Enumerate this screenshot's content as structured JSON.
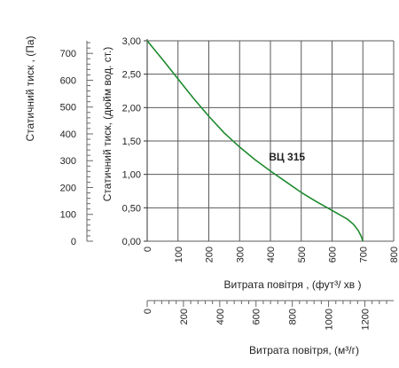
{
  "chart_data": {
    "type": "line",
    "series": [
      {
        "name": "ВЦ 315",
        "color": "#1e8a2e",
        "x": [
          0,
          50,
          100,
          150,
          200,
          250,
          300,
          350,
          400,
          450,
          500,
          550,
          600,
          650,
          670,
          685,
          695,
          700
        ],
        "y": [
          3.0,
          2.72,
          2.43,
          2.14,
          1.87,
          1.62,
          1.41,
          1.22,
          1.05,
          0.89,
          0.73,
          0.59,
          0.46,
          0.33,
          0.25,
          0.16,
          0.07,
          0.0
        ]
      }
    ],
    "x_axis_main": {
      "label": "Витрата повітря , (фут³/  хв )",
      "min": 0,
      "max": 800,
      "ticks": [
        "0",
        "100",
        "200",
        "300",
        "400",
        "500",
        "600",
        "700",
        "800"
      ],
      "grid": true
    },
    "y_axis_main": {
      "label": "Статичний тиск, (дюйм вод. ст.)",
      "min": 0,
      "max": 3,
      "ticks": [
        "0,00",
        "0,50",
        "1,00",
        "1,50",
        "2,00",
        "2,50",
        "3,00"
      ],
      "grid": true
    },
    "y_axis_secondary": {
      "label": "Статичний тиск , (Па)",
      "min": 0,
      "max": 747,
      "ticks": [
        "0",
        "100",
        "200",
        "300",
        "400",
        "500",
        "600",
        "700"
      ]
    },
    "x_axis_secondary": {
      "label": "Витрата повітря, (м³/г)",
      "min": 0,
      "max": 1359,
      "ticks": [
        "0",
        "200",
        "400",
        "600",
        "800",
        "1000",
        "1200"
      ]
    }
  }
}
